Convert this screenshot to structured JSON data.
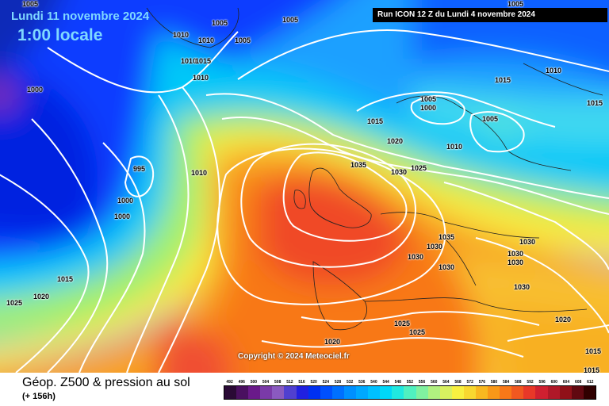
{
  "header": {
    "date": "Lundi 11 novembre 2024",
    "time": "1:00 locale",
    "run": "Run ICON 12 Z du Lundi 4 novembre 2024"
  },
  "copyright": "Copyright © 2024 Meteociel.fr",
  "footer": {
    "title": "Géop. Z500 & pression au sol",
    "subtitle": "(+ 156h)"
  },
  "scale": {
    "labels": [
      "492",
      "496",
      "500",
      "504",
      "508",
      "512",
      "516",
      "520",
      "524",
      "528",
      "532",
      "536",
      "540",
      "544",
      "548",
      "552",
      "556",
      "560",
      "564",
      "568",
      "572",
      "576",
      "580",
      "584",
      "588",
      "592",
      "596",
      "600",
      "604",
      "608",
      "612"
    ],
    "colors": [
      "#2a0a35",
      "#4a1060",
      "#6a1a8a",
      "#7a3aa8",
      "#8a5ac0",
      "#5040d0",
      "#2020e0",
      "#0030f0",
      "#0050ff",
      "#0070ff",
      "#0090ff",
      "#00a8ff",
      "#00c0ff",
      "#00d8f8",
      "#20e8e0",
      "#50f0c0",
      "#80f0a0",
      "#b0f080",
      "#d8f060",
      "#f8f040",
      "#f8d830",
      "#f8b820",
      "#f89818",
      "#f87818",
      "#f05820",
      "#e83828",
      "#d02030",
      "#b01828",
      "#901018",
      "#600810",
      "#300000"
    ]
  },
  "pressure_labels": [
    {
      "text": "1005",
      "cls": "p1"
    },
    {
      "text": "1005",
      "cls": "p2"
    },
    {
      "text": "1010",
      "cls": "p3"
    },
    {
      "text": "1010",
      "cls": "p4"
    },
    {
      "text": "1005",
      "cls": "p5"
    },
    {
      "text": "1010",
      "cls": "p6"
    },
    {
      "text": "1015",
      "cls": "p7"
    },
    {
      "text": "1010",
      "cls": "p8"
    },
    {
      "text": "1000",
      "cls": "p9"
    },
    {
      "text": "1005",
      "cls": "p10"
    },
    {
      "text": "995",
      "cls": "p11"
    },
    {
      "text": "1010",
      "cls": "p12"
    },
    {
      "text": "1000",
      "cls": "p13"
    },
    {
      "text": "1000",
      "cls": "p14"
    },
    {
      "text": "1015",
      "cls": "p15"
    },
    {
      "text": "1020",
      "cls": "p16"
    },
    {
      "text": "1025",
      "cls": "p17"
    },
    {
      "text": "1035",
      "cls": "p18"
    },
    {
      "text": "1015",
      "cls": "p19"
    },
    {
      "text": "1020",
      "cls": "p20"
    },
    {
      "text": "1030",
      "cls": "p21"
    },
    {
      "text": "1025",
      "cls": "p22"
    },
    {
      "text": "1005",
      "cls": "p23"
    },
    {
      "text": "1000",
      "cls": "p24"
    },
    {
      "text": "1010",
      "cls": "p25"
    },
    {
      "text": "1005",
      "cls": "p26"
    },
    {
      "text": "1015",
      "cls": "p27"
    },
    {
      "text": "1010",
      "cls": "p28"
    },
    {
      "text": "1035",
      "cls": "p29"
    },
    {
      "text": "1030",
      "cls": "p30"
    },
    {
      "text": "1030",
      "cls": "p31"
    },
    {
      "text": "1030",
      "cls": "p32"
    },
    {
      "text": "1030",
      "cls": "p33"
    },
    {
      "text": "1030",
      "cls": "p34"
    },
    {
      "text": "1030",
      "cls": "p35"
    },
    {
      "text": "1030",
      "cls": "p36"
    },
    {
      "text": "1025",
      "cls": "p37"
    },
    {
      "text": "1025",
      "cls": "p38"
    },
    {
      "text": "1020",
      "cls": "p39"
    },
    {
      "text": "1020",
      "cls": "p40"
    },
    {
      "text": "1015",
      "cls": "p41"
    },
    {
      "text": "1015",
      "cls": "p42"
    },
    {
      "text": "1015",
      "cls": "p43"
    },
    {
      "text": "1005",
      "cls": "p44"
    }
  ]
}
